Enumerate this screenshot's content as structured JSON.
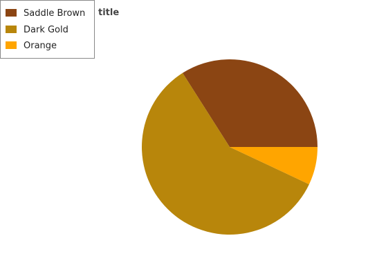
{
  "chart_data": {
    "type": "pie",
    "title": "title",
    "slices": [
      {
        "label": "Saddle Brown",
        "value": 34,
        "color": "#8B4513"
      },
      {
        "label": "Dark Gold",
        "value": 59,
        "color": "#B8860B"
      },
      {
        "label": "Orange",
        "value": 7,
        "color": "#FFA500"
      }
    ],
    "legend_position": "top-left"
  }
}
